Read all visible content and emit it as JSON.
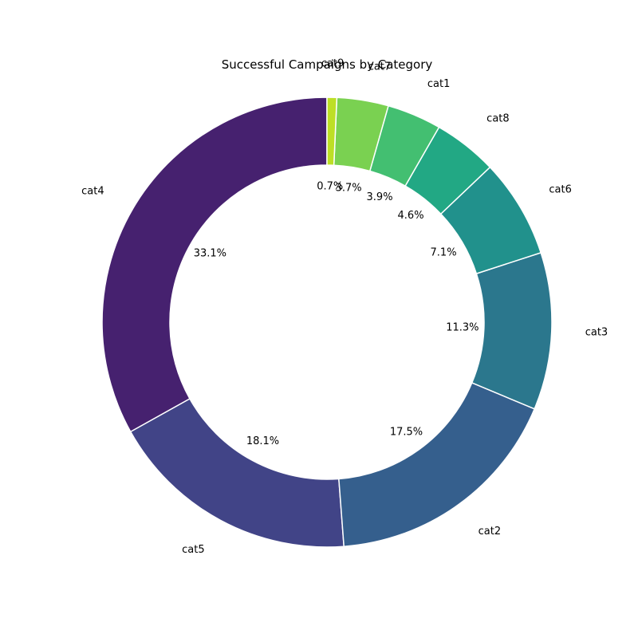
{
  "chart_data": {
    "type": "pie",
    "style": "donut",
    "title": "Successful Campaigns by Category",
    "categories": [
      "cat4",
      "cat5",
      "cat2",
      "cat3",
      "cat6",
      "cat8",
      "cat1",
      "cat7",
      "cat9"
    ],
    "values": [
      33.1,
      18.1,
      17.5,
      11.3,
      7.1,
      4.6,
      3.9,
      3.7,
      0.7
    ],
    "percent_labels": [
      "33.1%",
      "18.1%",
      "17.5%",
      "11.3%",
      "7.1%",
      "4.6%",
      "3.9%",
      "3.7%",
      "0.7%"
    ],
    "colors": [
      "#46216f",
      "#414487",
      "#355f8d",
      "#2b778d",
      "#21918c",
      "#22a884",
      "#43bf71",
      "#7ad151",
      "#bddf26"
    ],
    "start_angle_deg": 90,
    "direction": "counterclockwise",
    "legend": "none"
  }
}
